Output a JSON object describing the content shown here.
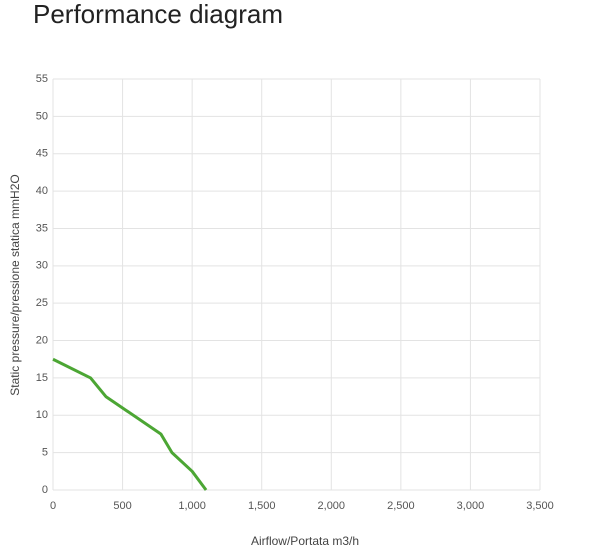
{
  "chart_data": {
    "type": "line",
    "title": "Performance diagram",
    "x_label": "Airflow/Portata m3/h",
    "y_label": "Static pressure/pressione statica mmH2O",
    "series": [
      {
        "color": "#4ca634",
        "x": [
          0,
          270,
          380,
          775,
          855,
          1000,
          1100
        ],
        "values": [
          17.5,
          15,
          12.5,
          7.5,
          5,
          2.5,
          0
        ]
      }
    ],
    "xlim": [
      0,
      3500
    ],
    "xticks": [
      0,
      500,
      {
        "value": 1000,
        "label": "1,000"
      },
      {
        "value": 1500,
        "label": "1,500"
      },
      {
        "value": 2000,
        "label": "2,000"
      },
      {
        "value": 2500,
        "label": "2,500"
      },
      {
        "value": 3000,
        "label": "3,000"
      },
      {
        "value": 3500,
        "label": "3,500"
      }
    ],
    "ylim": [
      0,
      55
    ],
    "yticks": [
      0,
      5,
      10,
      15,
      20,
      25,
      30,
      35,
      40,
      45,
      50,
      55
    ],
    "grid": true
  }
}
